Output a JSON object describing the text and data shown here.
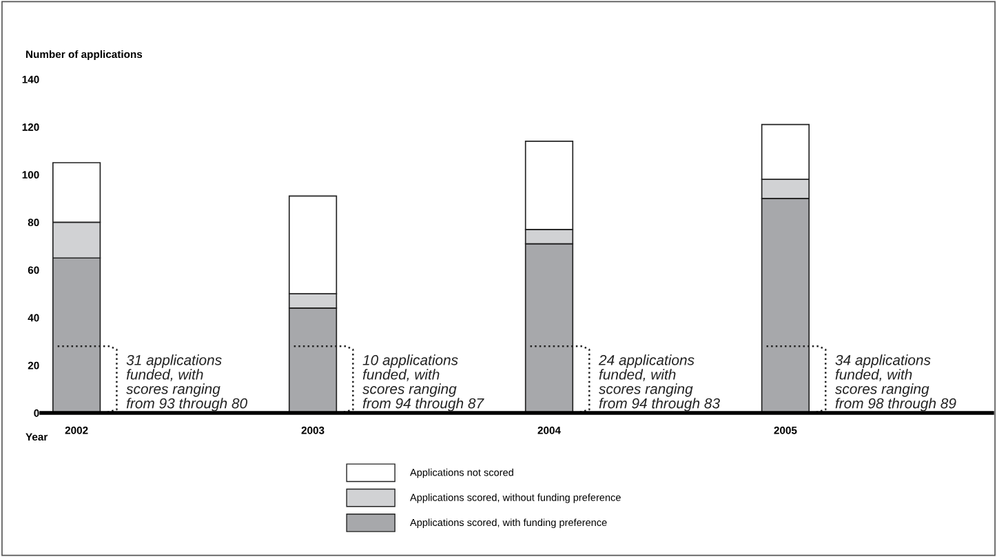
{
  "chart_data": {
    "type": "bar",
    "stacked": true,
    "ylabel": "Number of applications",
    "xlabel": "Year",
    "categories": [
      "2002",
      "2003",
      "2004",
      "2005"
    ],
    "series": [
      {
        "name": "Applications scored, with funding preference",
        "color": "#a7a8ab",
        "values": [
          65,
          44,
          71,
          90
        ]
      },
      {
        "name": "Applications scored, without funding preference",
        "color": "#d1d2d4",
        "values": [
          15,
          6,
          6,
          8
        ]
      },
      {
        "name": "Applications not scored",
        "color": "#ffffff",
        "values": [
          25,
          41,
          37,
          23
        ]
      }
    ],
    "ylim": [
      0,
      140
    ],
    "yticks": [
      0,
      20,
      40,
      60,
      80,
      100,
      120,
      140
    ],
    "grid": false,
    "legend": "bottom",
    "annotations": [
      "31 applications\nfunded, with\nscores ranging\nfrom 93 through 80",
      "10 applications\nfunded, with\nscores ranging\nfrom 94 through 87",
      "24 applications\nfunded, with\nscores ranging\nfrom 94 through 83",
      "34 applications\nfunded, with\nscores ranging\nfrom 98 through 89"
    ]
  }
}
